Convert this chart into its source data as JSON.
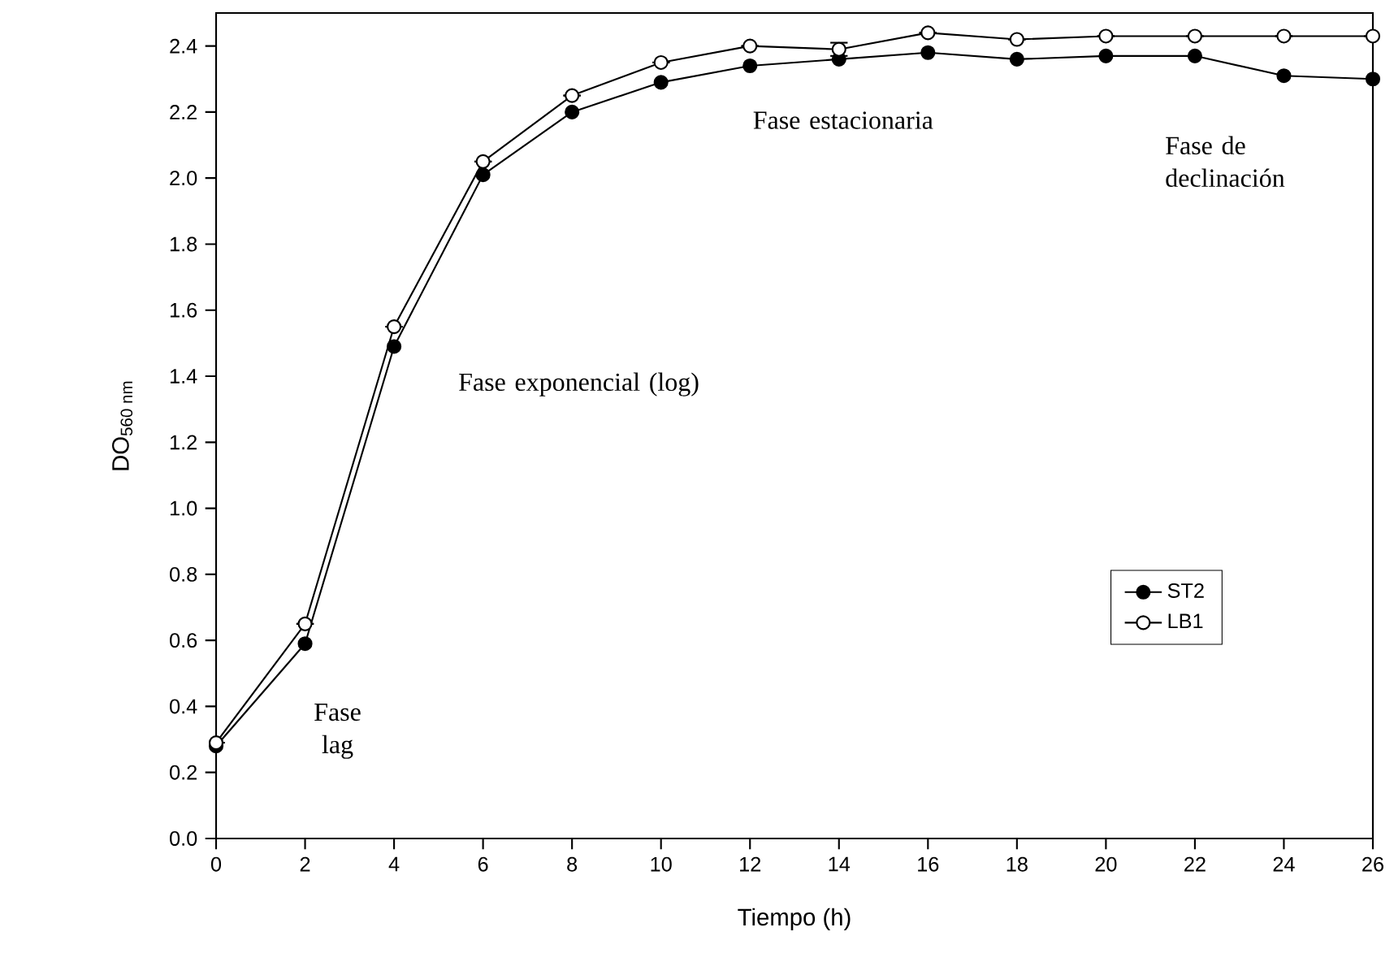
{
  "chart_data": {
    "type": "line",
    "xlabel": "Tiempo (h)",
    "ylabel": "DO$_{560 nm}$",
    "x": [
      0,
      2,
      4,
      6,
      8,
      10,
      12,
      14,
      16,
      18,
      20,
      22,
      24,
      26
    ],
    "series": [
      {
        "name": "ST2",
        "color": "#000000",
        "values": [
          0.28,
          0.59,
          1.49,
          2.01,
          2.2,
          2.29,
          2.34,
          2.36,
          2.38,
          2.36,
          2.37,
          2.37,
          2.31,
          2.3
        ]
      },
      {
        "name": "LB1",
        "color": "#ffffff",
        "values": [
          0.29,
          0.65,
          1.55,
          2.05,
          2.25,
          2.35,
          2.4,
          2.39,
          2.44,
          2.42,
          2.43,
          2.43,
          2.43,
          2.43
        ],
        "errors": [
          null,
          null,
          null,
          null,
          null,
          null,
          null,
          0.02,
          null,
          null,
          null,
          null,
          null,
          null
        ]
      }
    ],
    "xlim": [
      0,
      26
    ],
    "ylim": [
      0,
      2.5
    ],
    "xticks": [
      0,
      2,
      4,
      6,
      8,
      10,
      12,
      14,
      16,
      18,
      20,
      22,
      24,
      26
    ],
    "yticks": [
      {
        "value": 0,
        "label": "0.0"
      },
      {
        "value": 0.2,
        "label": "0.2"
      },
      {
        "value": 0.4,
        "label": "0.4"
      },
      {
        "value": 0.6,
        "label": "0.6"
      },
      {
        "value": 0.8,
        "label": "0.8"
      },
      {
        "value": 1.0,
        "label": "1.0"
      },
      {
        "value": 1.2,
        "label": "1.2"
      },
      {
        "value": 1.4,
        "label": "1.4"
      },
      {
        "value": 1.6,
        "label": "1.6"
      },
      {
        "value": 1.8,
        "label": "1.8"
      },
      {
        "value": 2.0,
        "label": "2.0"
      },
      {
        "value": 2.2,
        "label": "2.2"
      },
      {
        "value": 2.4,
        "label": "2.4"
      }
    ],
    "marker": "circle",
    "line_style": "solid",
    "grid": false,
    "legend": "right",
    "annotations": [
      "Fase lag",
      "Fase  exponencial (log)",
      "Fase estacionaria",
      "Fase de declinación"
    ]
  }
}
